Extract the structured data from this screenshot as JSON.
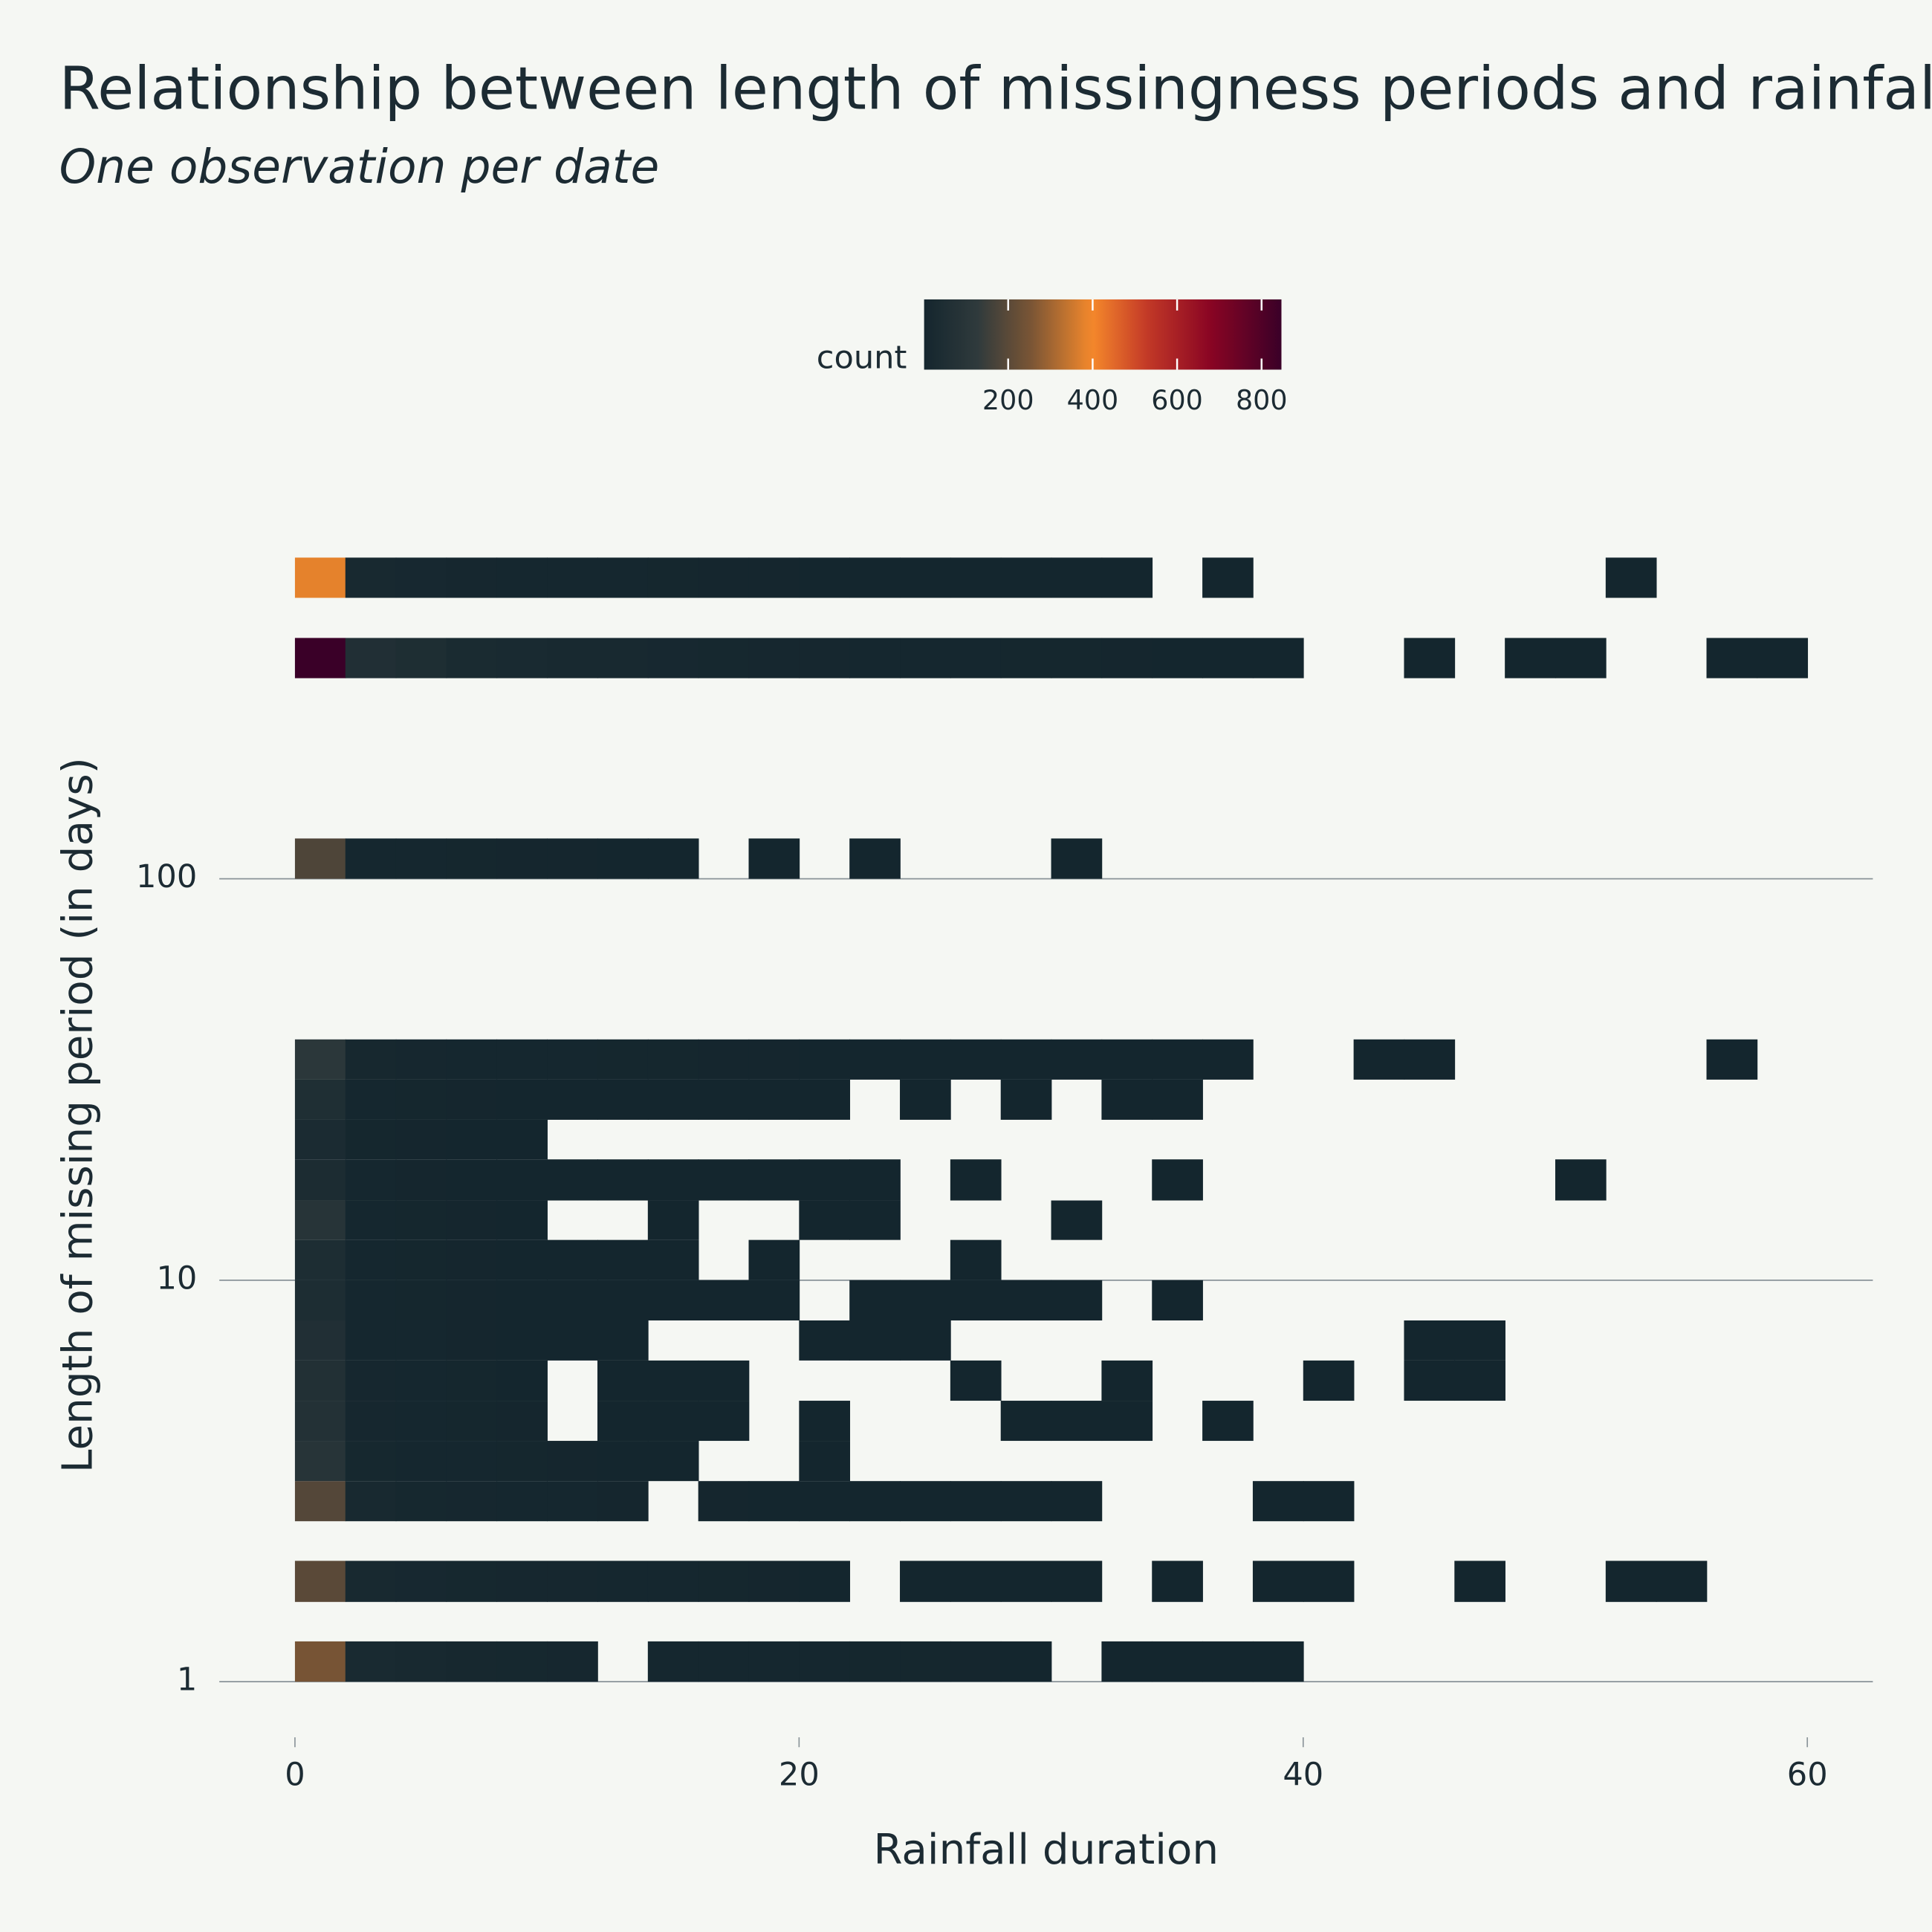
{
  "chart_data": {
    "type": "heatmap",
    "title": "Relationship between length of missingness periods and rainfall",
    "subtitle": "One observation per date",
    "x_label": "Rainfall duration",
    "y_label": "Length of missing period (in days)",
    "colorbar_label": "count",
    "x_bins": [
      0,
      2,
      4,
      6,
      8,
      10,
      12,
      14,
      16,
      18,
      20,
      22,
      24,
      26,
      28,
      30,
      32,
      34,
      36,
      38,
      40,
      42,
      44,
      46,
      48,
      50,
      52,
      54,
      56,
      58,
      60
    ],
    "rows": [
      {
        "y_bin": [
          1,
          1.26
        ],
        "values": [
          250,
          25,
          18,
          14,
          12,
          10,
          null,
          8,
          7,
          6,
          6,
          5,
          5,
          4,
          3,
          null,
          3,
          2,
          2,
          1,
          null,
          null,
          null,
          null,
          null,
          null,
          null,
          null,
          null,
          null
        ]
      },
      {
        "y_bin": [
          1.58,
          2.0
        ],
        "values": [
          200,
          22,
          15,
          12,
          10,
          9,
          8,
          6,
          5,
          4,
          3,
          null,
          3,
          2,
          2,
          1,
          null,
          1,
          null,
          2,
          1,
          null,
          null,
          1,
          null,
          null,
          1,
          1,
          null,
          null
        ]
      },
      {
        "y_bin": [
          2.51,
          3.16
        ],
        "values": [
          190,
          18,
          12,
          10,
          8,
          6,
          4,
          null,
          4,
          3,
          3,
          2,
          2,
          2,
          1,
          1,
          null,
          null,
          null,
          1,
          1,
          null,
          null,
          null,
          null,
          null,
          null,
          null,
          null,
          null
        ]
      },
      {
        "y_bin": [
          3.16,
          3.98
        ],
        "values": [
          90,
          12,
          8,
          6,
          5,
          4,
          3,
          2,
          null,
          null,
          1,
          null,
          null,
          null,
          null,
          null,
          null,
          null,
          null,
          null,
          null,
          null,
          null,
          null,
          null,
          null,
          null,
          null,
          null,
          null
        ]
      },
      {
        "y_bin": [
          3.98,
          5.01
        ],
        "values": [
          70,
          10,
          7,
          5,
          4,
          null,
          3,
          2,
          1,
          null,
          1,
          null,
          null,
          null,
          1,
          1,
          1,
          null,
          1,
          null,
          null,
          null,
          null,
          null,
          null,
          null,
          null,
          null,
          null,
          null
        ]
      },
      {
        "y_bin": [
          5.01,
          6.31
        ],
        "values": [
          65,
          9,
          6,
          5,
          3,
          null,
          2,
          2,
          1,
          null,
          null,
          null,
          null,
          1,
          null,
          null,
          1,
          null,
          null,
          null,
          1,
          null,
          1,
          1,
          null,
          null,
          null,
          null,
          null,
          null
        ]
      },
      {
        "y_bin": [
          6.31,
          7.94
        ],
        "values": [
          60,
          8,
          6,
          4,
          3,
          2,
          2,
          null,
          null,
          null,
          1,
          1,
          1,
          null,
          null,
          null,
          null,
          null,
          null,
          null,
          null,
          null,
          1,
          1,
          null,
          null,
          null,
          null,
          null,
          null
        ]
      },
      {
        "y_bin": [
          7.94,
          10
        ],
        "values": [
          45,
          8,
          5,
          4,
          3,
          3,
          2,
          2,
          1,
          1,
          null,
          1,
          1,
          1,
          1,
          1,
          null,
          1,
          null,
          null,
          null,
          null,
          null,
          null,
          null,
          null,
          null,
          null,
          null,
          null
        ]
      },
      {
        "y_bin": [
          10,
          12.6
        ],
        "values": [
          45,
          7,
          5,
          4,
          3,
          2,
          2,
          1,
          null,
          1,
          null,
          null,
          null,
          1,
          null,
          null,
          null,
          null,
          null,
          null,
          null,
          null,
          null,
          null,
          null,
          null,
          null,
          null,
          null,
          null
        ]
      },
      {
        "y_bin": [
          12.6,
          15.8
        ],
        "values": [
          90,
          7,
          5,
          4,
          3,
          null,
          null,
          1,
          null,
          null,
          1,
          1,
          null,
          null,
          null,
          1,
          null,
          null,
          null,
          null,
          null,
          null,
          null,
          null,
          null,
          null,
          null,
          null,
          null,
          null
        ]
      },
      {
        "y_bin": [
          15.8,
          20
        ],
        "values": [
          40,
          6,
          4,
          3,
          3,
          2,
          2,
          2,
          1,
          1,
          1,
          1,
          null,
          1,
          null,
          null,
          null,
          1,
          null,
          null,
          null,
          null,
          null,
          null,
          null,
          1,
          null,
          null,
          null,
          null
        ]
      },
      {
        "y_bin": [
          20,
          25.1
        ],
        "values": [
          35,
          5,
          4,
          3,
          2,
          null,
          null,
          null,
          null,
          null,
          null,
          null,
          null,
          null,
          null,
          null,
          null,
          null,
          null,
          null,
          null,
          null,
          null,
          null,
          null,
          null,
          null,
          null,
          null,
          null
        ]
      },
      {
        "y_bin": [
          25.1,
          31.6
        ],
        "values": [
          55,
          6,
          5,
          4,
          3,
          3,
          2,
          2,
          2,
          1,
          1,
          null,
          1,
          null,
          1,
          null,
          1,
          1,
          null,
          null,
          null,
          null,
          null,
          null,
          null,
          null,
          null,
          null,
          null,
          null
        ]
      },
      {
        "y_bin": [
          31.6,
          39.8
        ],
        "values": [
          110,
          14,
          10,
          8,
          7,
          6,
          5,
          5,
          4,
          4,
          3,
          3,
          3,
          2,
          2,
          2,
          2,
          1,
          1,
          null,
          null,
          1,
          1,
          null,
          null,
          null,
          null,
          null,
          1,
          null
        ]
      },
      {
        "y_bin": [
          100,
          126
        ],
        "values": [
          180,
          8,
          6,
          5,
          4,
          4,
          3,
          3,
          null,
          1,
          null,
          1,
          null,
          null,
          null,
          1,
          null,
          null,
          null,
          null,
          null,
          null,
          null,
          null,
          null,
          null,
          null,
          null,
          null,
          null
        ]
      },
      {
        "y_bin": [
          316,
          398
        ],
        "values": [
          847,
          60,
          50,
          30,
          25,
          20,
          18,
          15,
          12,
          10,
          9,
          8,
          7,
          6,
          5,
          5,
          4,
          3,
          3,
          2,
          null,
          null,
          1,
          null,
          1,
          1,
          null,
          null,
          1,
          1
        ]
      },
      {
        "y_bin": [
          501,
          631
        ],
        "values": [
          380,
          20,
          15,
          10,
          8,
          7,
          6,
          5,
          4,
          4,
          3,
          3,
          2,
          2,
          2,
          1,
          1,
          null,
          1,
          null,
          null,
          null,
          null,
          null,
          null,
          null,
          1,
          null,
          null,
          null
        ]
      }
    ],
    "xlim": [
      -3,
      62.6
    ],
    "ylim": [
      0.78,
      740
    ],
    "log_y": true,
    "xticks": [
      0,
      20,
      40,
      60
    ],
    "yticks": [
      1,
      10,
      100
    ],
    "grid": true,
    "clim": [
      1,
      847
    ],
    "colorbar_ticks": [
      200,
      400,
      600,
      800
    ],
    "colorscale": [
      [
        0,
        "#14262e"
      ],
      [
        0.15,
        "#2f3a3c"
      ],
      [
        0.3,
        "#7a5535"
      ],
      [
        0.47,
        "#f5892b"
      ],
      [
        0.62,
        "#c43a27"
      ],
      [
        0.8,
        "#8a0523"
      ],
      [
        1,
        "#3a0028"
      ]
    ]
  }
}
